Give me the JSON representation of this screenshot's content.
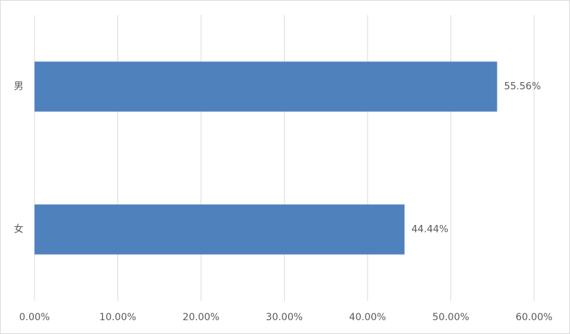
{
  "chart_data": {
    "type": "bar",
    "orientation": "horizontal",
    "categories": [
      "男",
      "女"
    ],
    "values": [
      55.56,
      44.44
    ],
    "value_labels": [
      "55.56%",
      "44.44%"
    ],
    "color": "#4f81bd",
    "xlim": [
      0,
      60
    ],
    "xticks": [
      {
        "value": 0,
        "label": "0.00%"
      },
      {
        "value": 10,
        "label": "10.00%"
      },
      {
        "value": 20,
        "label": "20.00%"
      },
      {
        "value": 30,
        "label": "30.00%"
      },
      {
        "value": 40,
        "label": "40.00%"
      },
      {
        "value": 50,
        "label": "50.00%"
      },
      {
        "value": 60,
        "label": "60.00%"
      }
    ],
    "grid": true
  }
}
